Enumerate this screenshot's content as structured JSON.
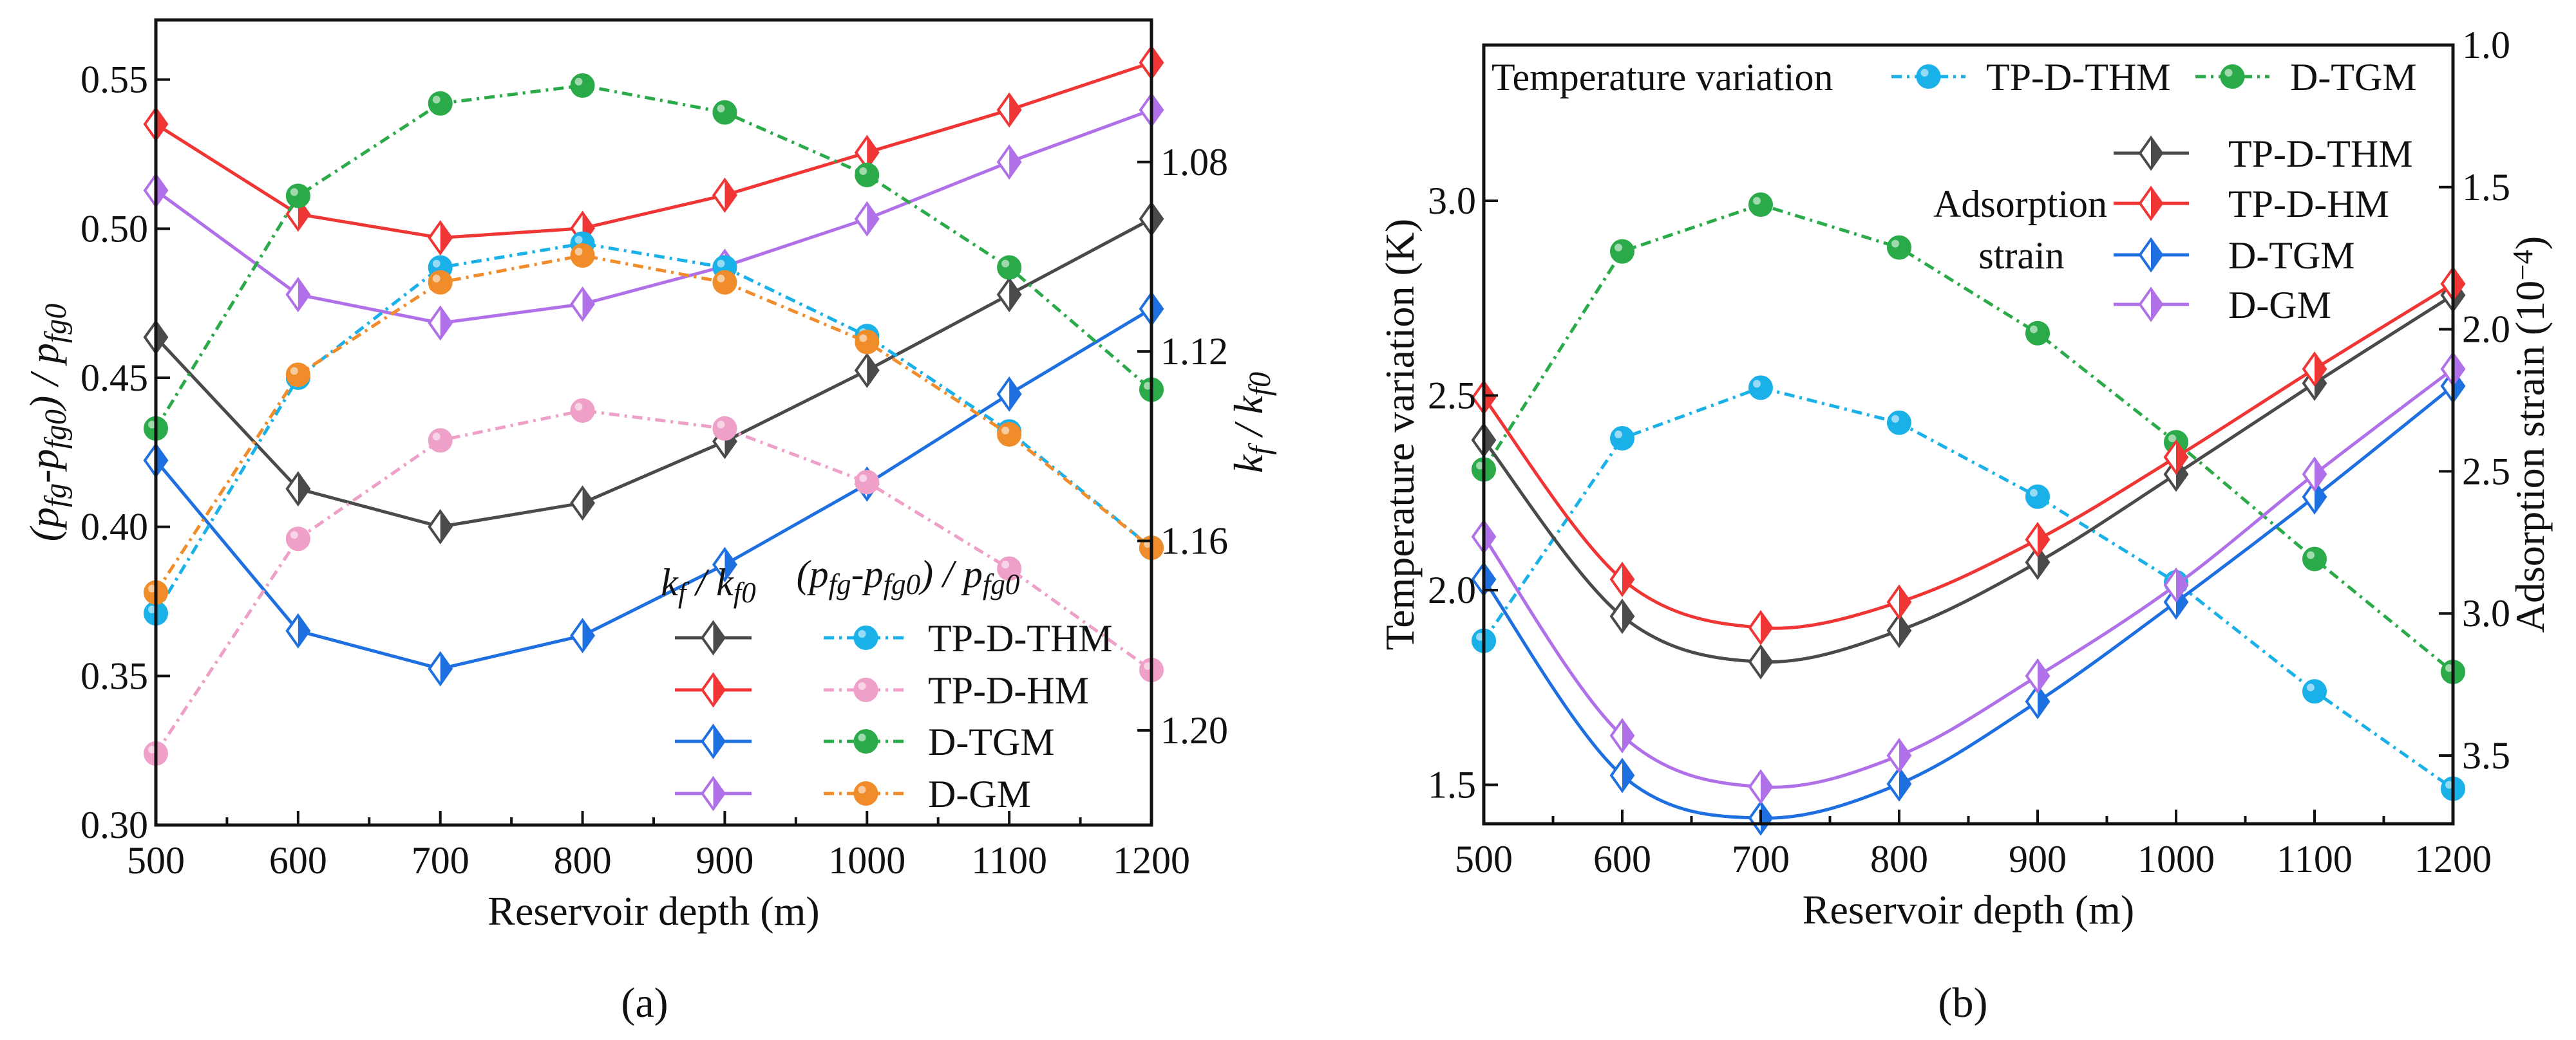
{
  "chart_data": [
    {
      "type": "line",
      "panel_label": "(a)",
      "xlabel": "Reservoir depth (m)",
      "ylabel": "(p_{fg}-p_{fg0}) / p_{fg0}",
      "y2label": "k_{f} / k_{f0}",
      "x": [
        500,
        600,
        700,
        800,
        900,
        1000,
        1100,
        1200
      ],
      "xlim": [
        500,
        1200
      ],
      "xticks": [
        500,
        600,
        700,
        800,
        900,
        1000,
        1100,
        1200
      ],
      "ylim": [
        0.3,
        0.57
      ],
      "yticks": [
        "0.30",
        "0.35",
        "0.40",
        "0.45",
        "0.50",
        "0.55"
      ],
      "y2lim": [
        1.05,
        1.22
      ],
      "y2_inverted": true,
      "y2ticks": [
        "1.08",
        "1.12",
        "1.16",
        "1.20"
      ],
      "grid": false,
      "legend_placement": "bottom-right",
      "legend_headers": [
        "k_{f} / k_{f0}",
        "(p_{fg}-p_{fg0}) / p_{fg0}"
      ],
      "legend_labels": [
        "TP-D-THM",
        "TP-D-HM",
        "D-TGM",
        "D-GM"
      ],
      "series": [
        {
          "name": "TP-D-THM",
          "group": "kf/kf0",
          "axis": "right",
          "style": "solid",
          "marker": "diamond",
          "color": "#4a4a4a",
          "values": [
            1.117,
            1.149,
            1.157,
            1.152,
            1.139,
            1.124,
            1.108,
            1.092
          ]
        },
        {
          "name": "TP-D-HM",
          "group": "kf/kf0",
          "axis": "right",
          "style": "solid",
          "marker": "diamond",
          "color": "#f03535",
          "values": [
            1.072,
            1.091,
            1.096,
            1.094,
            1.087,
            1.078,
            1.069,
            1.059
          ]
        },
        {
          "name": "D-TGM",
          "group": "kf/kf0",
          "axis": "right",
          "style": "solid",
          "marker": "diamond",
          "color": "#1e6fe0",
          "values": [
            1.143,
            1.179,
            1.187,
            1.18,
            1.165,
            1.148,
            1.129,
            1.111
          ]
        },
        {
          "name": "D-GM",
          "group": "kf/kf0",
          "axis": "right",
          "style": "solid",
          "marker": "diamond",
          "color": "#b070e8",
          "values": [
            1.086,
            1.108,
            1.114,
            1.11,
            1.102,
            1.092,
            1.08,
            1.069
          ]
        },
        {
          "name": "TP-D-THM",
          "group": "pressure",
          "axis": "left",
          "style": "dashdot",
          "marker": "circle",
          "color": "#1ab0e8",
          "values": [
            0.371,
            0.45,
            0.487,
            0.495,
            0.487,
            0.464,
            0.432,
            0.393
          ]
        },
        {
          "name": "TP-D-HM",
          "group": "pressure",
          "axis": "left",
          "style": "dashdot",
          "marker": "circle",
          "color": "#eea0c8",
          "values": [
            0.324,
            0.396,
            0.429,
            0.439,
            0.433,
            0.415,
            0.386,
            0.352
          ]
        },
        {
          "name": "D-TGM",
          "group": "pressure",
          "axis": "left",
          "style": "dashdot",
          "marker": "circle",
          "color": "#2aaa48",
          "values": [
            0.433,
            0.511,
            0.542,
            0.548,
            0.539,
            0.518,
            0.487,
            0.446
          ]
        },
        {
          "name": "D-GM",
          "group": "pressure",
          "axis": "left",
          "style": "dashdot",
          "marker": "circle",
          "color": "#f08c2a",
          "values": [
            0.378,
            0.451,
            0.482,
            0.491,
            0.482,
            0.462,
            0.431,
            0.393
          ]
        }
      ]
    },
    {
      "type": "line",
      "panel_label": "(b)",
      "xlabel": "Reservoir depth (m)",
      "ylabel": "Temperature variation (K)",
      "y2label": "Adsorption strain (10^{−4})",
      "x": [
        500,
        600,
        700,
        800,
        900,
        1000,
        1100,
        1200
      ],
      "xlim": [
        500,
        1200
      ],
      "xticks": [
        500,
        600,
        700,
        800,
        900,
        1000,
        1100,
        1200
      ],
      "ylim": [
        1.4,
        3.4
      ],
      "yticks": [
        "1.5",
        "2.0",
        "2.5",
        "3.0"
      ],
      "y2lim": [
        1.0,
        3.74
      ],
      "y2_inverted": true,
      "y2ticks": [
        "1.0",
        "1.5",
        "2.0",
        "2.5",
        "3.0",
        "3.5"
      ],
      "grid": false,
      "legend_placement": "top",
      "legend_temperature_title": "Temperature variation",
      "legend_adsorption_title": [
        "Adsorption",
        "strain"
      ],
      "series": [
        {
          "name": "TP-D-THM",
          "group": "temperature",
          "axis": "left",
          "style": "dashdot",
          "marker": "circle",
          "color": "#1ab0e8",
          "values": [
            1.87,
            2.39,
            2.52,
            2.43,
            2.24,
            2.02,
            1.74,
            1.49
          ]
        },
        {
          "name": "D-TGM",
          "group": "temperature",
          "axis": "left",
          "style": "dashdot",
          "marker": "circle",
          "color": "#2aaa48",
          "values": [
            2.31,
            2.87,
            2.99,
            2.88,
            2.66,
            2.38,
            2.08,
            1.79
          ]
        },
        {
          "name": "TP-D-THM",
          "group": "adsorption",
          "axis": "right",
          "style": "smooth",
          "marker": "diamond",
          "color": "#4a4a4a",
          "values": [
            2.39,
            3.01,
            3.17,
            3.06,
            2.82,
            2.51,
            2.19,
            1.88
          ]
        },
        {
          "name": "TP-D-HM",
          "group": "adsorption",
          "axis": "right",
          "style": "smooth",
          "marker": "diamond",
          "color": "#f03535",
          "values": [
            2.24,
            2.88,
            3.05,
            2.96,
            2.74,
            2.45,
            2.14,
            1.84
          ]
        },
        {
          "name": "D-TGM",
          "group": "adsorption",
          "axis": "right",
          "style": "smooth",
          "marker": "diamond",
          "color": "#1e6fe0",
          "values": [
            2.88,
            3.57,
            3.72,
            3.6,
            3.31,
            2.96,
            2.59,
            2.2
          ]
        },
        {
          "name": "D-GM",
          "group": "adsorption",
          "axis": "right",
          "style": "smooth",
          "marker": "diamond",
          "color": "#b070e8",
          "values": [
            2.73,
            3.43,
            3.61,
            3.5,
            3.22,
            2.9,
            2.51,
            2.14
          ]
        }
      ]
    }
  ]
}
